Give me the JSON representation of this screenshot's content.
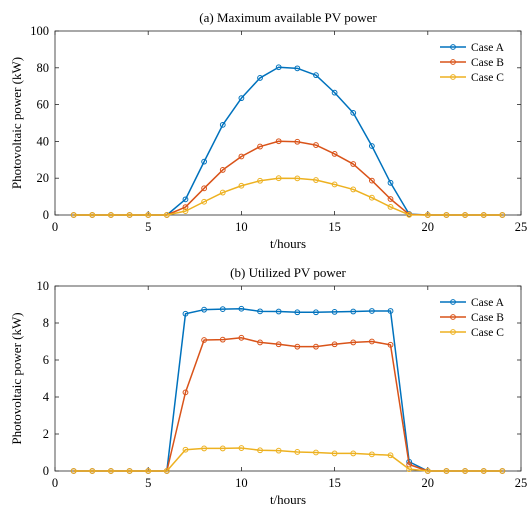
{
  "chart_data": [
    {
      "type": "line",
      "title": "(a) Maximum available PV power",
      "xlabel": "t/hours",
      "ylabel": "Photovoltaic power (kW)",
      "xlim": [
        0,
        25
      ],
      "ylim": [
        0,
        100
      ],
      "xticks": [
        "0",
        "5",
        "10",
        "15",
        "20",
        "25"
      ],
      "yticks": [
        "0",
        "20",
        "40",
        "60",
        "80",
        "100"
      ],
      "grid": false,
      "legend_position": "top-right",
      "x": [
        1,
        2,
        3,
        4,
        5,
        6,
        7,
        8,
        9,
        10,
        11,
        12,
        13,
        14,
        15,
        16,
        17,
        18,
        19,
        20,
        21,
        22,
        23,
        24
      ],
      "series": [
        {
          "name": "Case A",
          "color": "#0072BD",
          "values": [
            0,
            0,
            0,
            0,
            0,
            0,
            8.5,
            29,
            49,
            63.5,
            74.5,
            80.3,
            79.7,
            76,
            66.5,
            55.5,
            37.5,
            17.5,
            0.5,
            0,
            0,
            0,
            0,
            0
          ]
        },
        {
          "name": "Case B",
          "color": "#D95319",
          "values": [
            0,
            0,
            0,
            0,
            0,
            0,
            4.3,
            14.5,
            24.5,
            31.8,
            37.2,
            40.1,
            39.8,
            38,
            33.2,
            27.7,
            18.7,
            8.7,
            0.3,
            0,
            0,
            0,
            0,
            0
          ]
        },
        {
          "name": "Case C",
          "color": "#EDB120",
          "values": [
            0,
            0,
            0,
            0,
            0,
            0,
            2.1,
            7.2,
            12.2,
            15.9,
            18.6,
            20,
            19.9,
            19,
            16.6,
            13.9,
            9.4,
            4.4,
            0.1,
            0,
            0,
            0,
            0,
            0
          ]
        }
      ]
    },
    {
      "type": "line",
      "title": "(b) Utilized PV power",
      "xlabel": "t/hours",
      "ylabel": "Photovoltaic power (kW)",
      "xlim": [
        0,
        25
      ],
      "ylim": [
        0,
        10
      ],
      "xticks": [
        "0",
        "5",
        "10",
        "15",
        "20",
        "25"
      ],
      "yticks": [
        "0",
        "2",
        "4",
        "6",
        "8",
        "10"
      ],
      "grid": false,
      "legend_position": "top-right",
      "x": [
        1,
        2,
        3,
        4,
        5,
        6,
        7,
        8,
        9,
        10,
        11,
        12,
        13,
        14,
        15,
        16,
        17,
        18,
        19,
        20,
        21,
        22,
        23,
        24
      ],
      "series": [
        {
          "name": "Case A",
          "color": "#0072BD",
          "values": [
            0,
            0,
            0,
            0,
            0,
            0,
            8.5,
            8.72,
            8.75,
            8.77,
            8.63,
            8.62,
            8.58,
            8.58,
            8.6,
            8.62,
            8.65,
            8.65,
            0.5,
            0,
            0,
            0,
            0,
            0
          ]
        },
        {
          "name": "Case B",
          "color": "#D95319",
          "values": [
            0,
            0,
            0,
            0,
            0,
            0,
            4.25,
            7.08,
            7.1,
            7.2,
            6.95,
            6.85,
            6.72,
            6.72,
            6.85,
            6.95,
            7.0,
            6.82,
            0.35,
            0,
            0,
            0,
            0,
            0
          ]
        },
        {
          "name": "Case C",
          "color": "#EDB120",
          "values": [
            0,
            0,
            0,
            0,
            0,
            0,
            1.15,
            1.22,
            1.22,
            1.24,
            1.12,
            1.1,
            1.03,
            1.0,
            0.95,
            0.95,
            0.9,
            0.85,
            0.1,
            0,
            0,
            0,
            0,
            0
          ]
        }
      ]
    }
  ]
}
